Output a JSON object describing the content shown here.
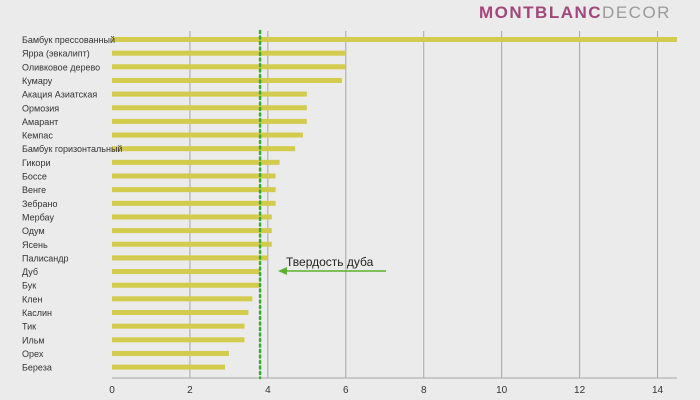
{
  "brand": {
    "part1": "MONTBLANC",
    "part2": "DECOR",
    "color1": "#a3467c",
    "color2": "#9a9a9a"
  },
  "colors": {
    "background": "#ebebeb",
    "bar": "#d2cb4d",
    "grid": "#a6a6a6",
    "reference_line": "#3aaa35",
    "annotation_arrow": "#5bb22f",
    "axis_text": "#333333"
  },
  "chart_data": {
    "type": "bar",
    "orientation": "horizontal",
    "title": "",
    "xlabel": "",
    "ylabel": "",
    "xlim": [
      0,
      14.5
    ],
    "x_ticks": [
      0,
      2,
      4,
      6,
      8,
      10,
      12,
      14
    ],
    "grid": "vertical",
    "categories": [
      "Бамбук прессованный",
      "Ярра (эвкалипт)",
      "Оливковое дерево",
      "Кумару",
      "Акация Азиатская",
      "Ормозия",
      "Амарант",
      "Кемпас",
      "Бамбук горизонтальный",
      "Гикори",
      "Боссе",
      "Венге",
      "Зебрано",
      "Мербау",
      "Одум",
      "Ясень",
      "Палисандр",
      "Дуб",
      "Бук",
      "Клен",
      "Каслин",
      "Тик",
      "Ильм",
      "Орех",
      "Береза"
    ],
    "values": [
      14.5,
      6.0,
      6.0,
      5.9,
      5.0,
      5.0,
      5.0,
      4.9,
      4.7,
      4.3,
      4.2,
      4.2,
      4.2,
      4.1,
      4.1,
      4.1,
      4.0,
      3.8,
      3.8,
      3.6,
      3.5,
      3.4,
      3.4,
      3.0,
      2.9
    ],
    "reference_line": {
      "value": 3.8,
      "style": "dotted",
      "annotation": "Твердость дуба"
    }
  }
}
